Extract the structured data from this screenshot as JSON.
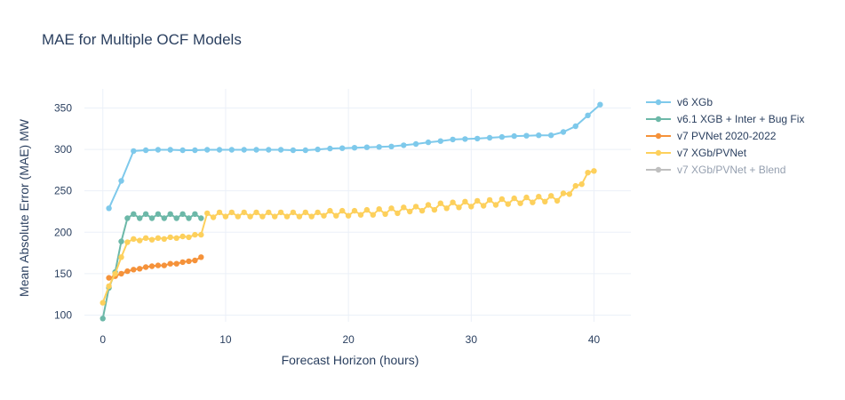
{
  "chart_data": {
    "type": "line",
    "title": "MAE for Multiple OCF Models",
    "xlabel": "Forecast Horizon (hours)",
    "ylabel": "Mean Absolute Error (MAE) MW",
    "xlim": [
      -1.5,
      43
    ],
    "ylim": [
      92,
      373
    ],
    "x_ticks": [
      0,
      10,
      20,
      30,
      40
    ],
    "y_ticks": [
      100,
      150,
      200,
      250,
      300,
      350
    ],
    "grid": true,
    "legend_position": "top-right",
    "series": [
      {
        "name": "v6 XGb",
        "color": "#7ec9eb",
        "x": [
          0.5,
          1.5,
          2.5,
          3.5,
          4.5,
          5.5,
          6.5,
          7.5,
          8.5,
          9.5,
          10.5,
          11.5,
          12.5,
          13.5,
          14.5,
          15.5,
          16.5,
          17.5,
          18.5,
          19.5,
          20.5,
          21.5,
          22.5,
          23.5,
          24.5,
          25.5,
          26.5,
          27.5,
          28.5,
          29.5,
          30.5,
          31.5,
          32.5,
          33.5,
          34.5,
          35.5,
          36.5,
          37.5,
          38.5,
          39.5,
          40.5
        ],
        "y": [
          229,
          262,
          298,
          299,
          299.5,
          299.5,
          299,
          299,
          299.5,
          299.5,
          299.5,
          299.5,
          299.5,
          299.5,
          299.5,
          299,
          299,
          300,
          301,
          301.5,
          302,
          302.5,
          303,
          303.5,
          305,
          306.5,
          308.5,
          310,
          312,
          312.5,
          313,
          314,
          315,
          316,
          316.5,
          317,
          317,
          321,
          328,
          341,
          354
        ]
      },
      {
        "name": "v6.1 XGB + Inter + Bug Fix",
        "color": "#6cb8a8",
        "x": [
          0,
          0.5,
          1,
          1.5,
          2,
          2.5,
          3,
          3.5,
          4,
          4.5,
          5,
          5.5,
          6,
          6.5,
          7,
          7.5,
          8
        ],
        "y": [
          96,
          133,
          152,
          189,
          217,
          222,
          217,
          222,
          217,
          222,
          217,
          222,
          217,
          222,
          217,
          222,
          217
        ]
      },
      {
        "name": "v7 PVNet 2020-2022",
        "color": "#f5923a",
        "x": [
          0.5,
          1,
          1.5,
          2,
          2.5,
          3,
          3.5,
          4,
          4.5,
          5,
          5.5,
          6,
          6.5,
          7,
          7.5,
          8
        ],
        "y": [
          145,
          147,
          150,
          153,
          155,
          156,
          158,
          159,
          160,
          160,
          162,
          162,
          164,
          165,
          166,
          170
        ]
      },
      {
        "name": "v7 XGb/PVNet",
        "color": "#fdd05c",
        "x": [
          0,
          0.5,
          1,
          1.5,
          2,
          2.5,
          3,
          3.5,
          4,
          4.5,
          5,
          5.5,
          6,
          6.5,
          7,
          7.5,
          8,
          8.5,
          9,
          9.5,
          10,
          10.5,
          11,
          11.5,
          12,
          12.5,
          13,
          13.5,
          14,
          14.5,
          15,
          15.5,
          16,
          16.5,
          17,
          17.5,
          18,
          18.5,
          19,
          19.5,
          20,
          20.5,
          21,
          21.5,
          22,
          22.5,
          23,
          23.5,
          24,
          24.5,
          25,
          25.5,
          26,
          26.5,
          27,
          27.5,
          28,
          28.5,
          29,
          29.5,
          30,
          30.5,
          31,
          31.5,
          32,
          32.5,
          33,
          33.5,
          34,
          34.5,
          35,
          35.5,
          36,
          36.5,
          37,
          37.5,
          38,
          38.5,
          39,
          39.5,
          40
        ],
        "y": [
          115,
          135,
          150,
          170,
          188,
          192,
          190,
          193,
          191,
          193,
          192,
          194,
          193,
          195,
          194,
          197,
          197,
          223,
          218,
          224,
          219,
          224,
          219,
          224,
          219,
          224,
          219,
          224,
          219,
          224,
          219,
          224,
          219,
          224,
          219,
          224,
          220,
          226,
          220,
          226,
          220,
          226,
          221,
          227,
          221,
          228,
          222,
          229,
          223,
          230,
          225,
          231,
          226,
          233,
          227,
          235,
          229,
          236,
          230,
          237,
          231,
          238,
          232,
          239,
          233,
          240,
          234,
          241,
          235,
          242,
          236,
          243,
          237,
          244,
          238,
          247,
          246,
          256,
          258,
          272,
          274
        ]
      },
      {
        "name": "v7 XGb/PVNet + Blend",
        "color": "#808080",
        "legendonly": true,
        "x": [],
        "y": []
      }
    ]
  }
}
